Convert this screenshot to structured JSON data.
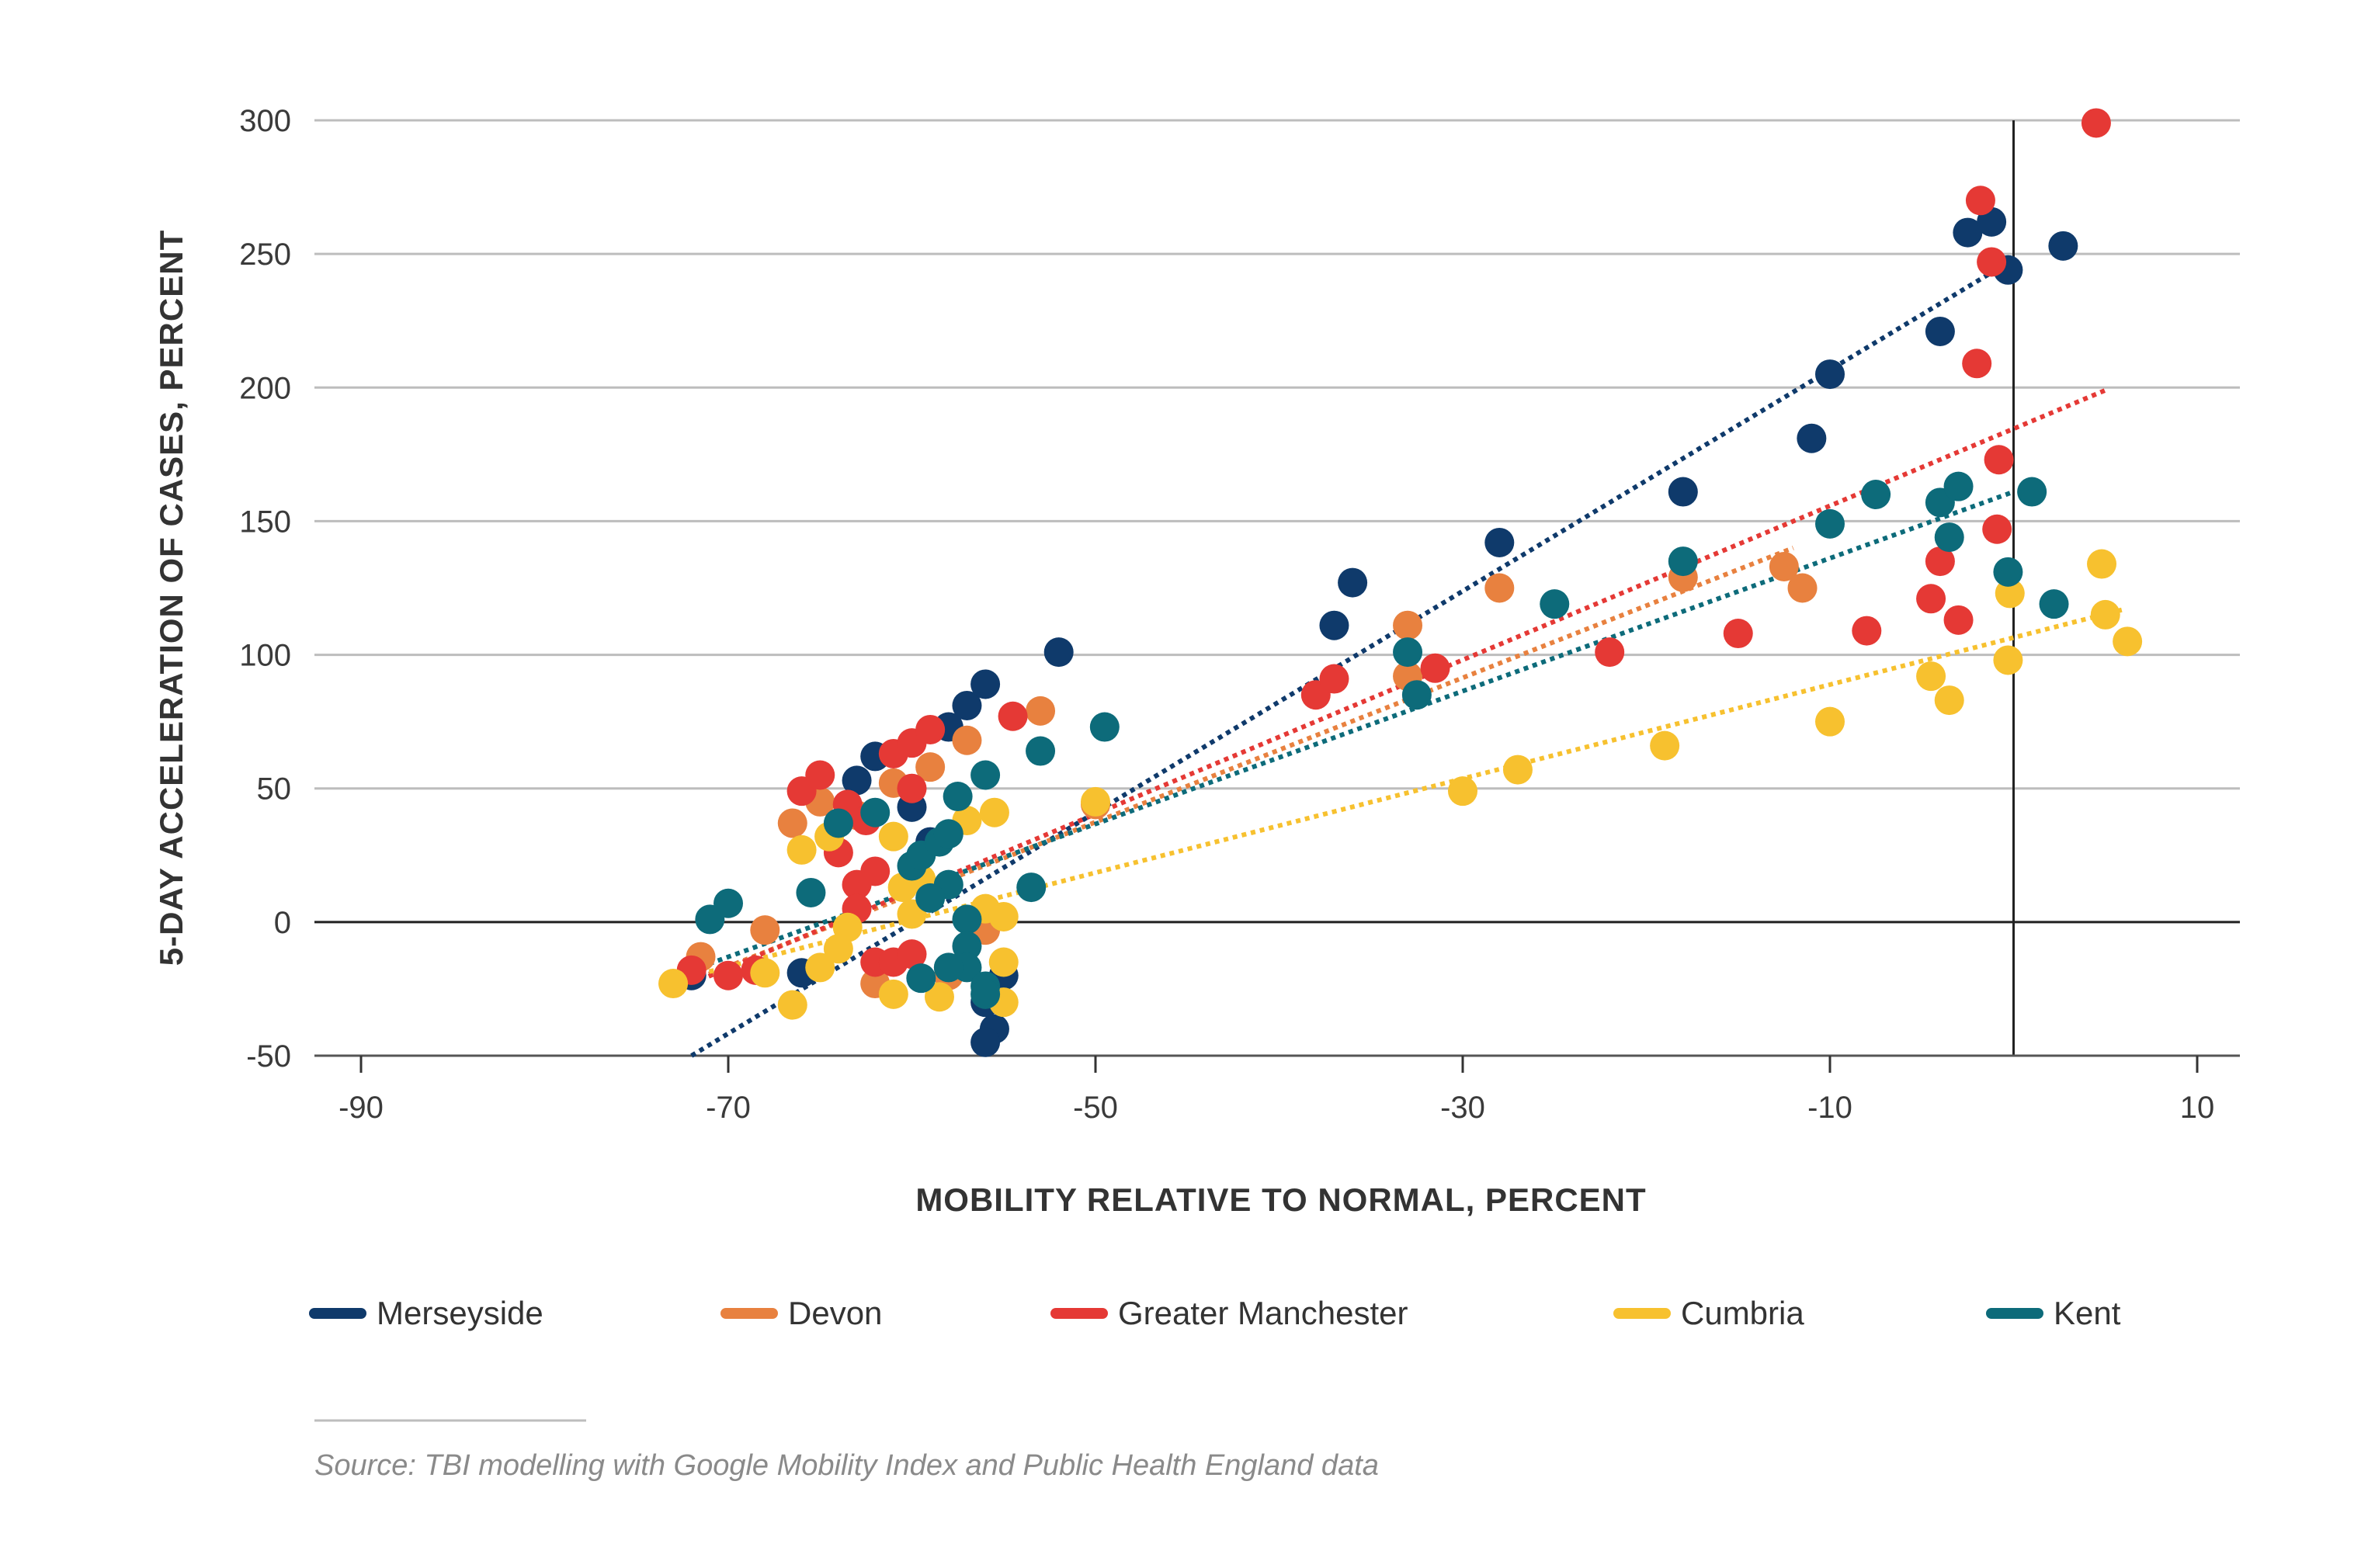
{
  "chart_data": {
    "type": "scatter",
    "xlabel": "MOBILITY RELATIVE TO NORMAL, PERCENT",
    "ylabel": "5-DAY ACCELERATION OF CASES, PERCENT",
    "xlim": [
      -90,
      10
    ],
    "ylim": [
      -50,
      300
    ],
    "xticks": [
      "-90",
      "-70",
      "-50",
      "-30",
      "-10",
      "10"
    ],
    "yticks": [
      "-50",
      "0",
      "50",
      "100",
      "150",
      "200",
      "250",
      "300"
    ],
    "xtick_values": [
      -90,
      -70,
      -50,
      -30,
      -10,
      10
    ],
    "ytick_values": [
      -50,
      0,
      50,
      100,
      150,
      200,
      250,
      300
    ],
    "grid": "horizontal",
    "reference_lines": {
      "x": 0,
      "y": 0
    },
    "legend_position": "bottom",
    "source": "Source: TBI modelling with Google Mobility Index and Public Health England data",
    "series": [
      {
        "name": "Merseyside",
        "color": "#0f3a6b",
        "points": [
          [
            -72,
            -20
          ],
          [
            -66,
            -19
          ],
          [
            -62,
            62
          ],
          [
            -63,
            53
          ],
          [
            -60,
            43
          ],
          [
            -59,
            30
          ],
          [
            -58,
            73
          ],
          [
            -57,
            81
          ],
          [
            -56,
            89
          ],
          [
            -52,
            101
          ],
          [
            -56,
            -30
          ],
          [
            -55.5,
            -40
          ],
          [
            -56,
            -45
          ],
          [
            -55,
            -20
          ],
          [
            -37,
            111
          ],
          [
            -36,
            127
          ],
          [
            -28,
            142
          ],
          [
            -18,
            161
          ],
          [
            -11,
            181
          ],
          [
            -10,
            205
          ],
          [
            -4,
            221
          ],
          [
            -2.5,
            258
          ],
          [
            -1.2,
            262
          ],
          [
            -0.3,
            244
          ],
          [
            2.7,
            253
          ]
        ],
        "trend": [
          [
            -72,
            -50
          ],
          [
            0,
            248
          ]
        ]
      },
      {
        "name": "Devon",
        "color": "#e8813f",
        "points": [
          [
            -71.5,
            -13
          ],
          [
            -68,
            -3
          ],
          [
            -66.5,
            37
          ],
          [
            -65,
            45
          ],
          [
            -63,
            40
          ],
          [
            -61,
            52
          ],
          [
            -59,
            58
          ],
          [
            -57,
            68
          ],
          [
            -53,
            79
          ],
          [
            -50,
            44
          ],
          [
            -56,
            -3
          ],
          [
            -58,
            -20
          ],
          [
            -62,
            -23
          ],
          [
            -33,
            111
          ],
          [
            -33,
            92
          ],
          [
            -28,
            125
          ],
          [
            -18,
            129
          ],
          [
            -12.5,
            133
          ],
          [
            -11.5,
            125
          ]
        ],
        "trend": [
          [
            -72,
            -22
          ],
          [
            -12,
            140
          ]
        ]
      },
      {
        "name": "Greater Manchester",
        "color": "#e53935",
        "points": [
          [
            -72,
            -18
          ],
          [
            -70,
            -20
          ],
          [
            -68.5,
            -18
          ],
          [
            -66,
            49
          ],
          [
            -65,
            55
          ],
          [
            -64,
            26
          ],
          [
            -63.5,
            44
          ],
          [
            -62.5,
            38
          ],
          [
            -62,
            19
          ],
          [
            -63,
            14
          ],
          [
            -61,
            63
          ],
          [
            -60,
            67
          ],
          [
            -59,
            72
          ],
          [
            -60,
            50
          ],
          [
            -63,
            5
          ],
          [
            -62,
            -15
          ],
          [
            -61,
            -15
          ],
          [
            -60,
            -12
          ],
          [
            -54.5,
            77
          ],
          [
            -38,
            85
          ],
          [
            -37,
            91
          ],
          [
            -31.5,
            95
          ],
          [
            -22,
            101
          ],
          [
            -15,
            108
          ],
          [
            -8,
            109
          ],
          [
            -4.5,
            121
          ],
          [
            -4,
            135
          ],
          [
            -3,
            113
          ],
          [
            -2,
            209
          ],
          [
            -1.8,
            270
          ],
          [
            -1.2,
            247
          ],
          [
            -0.8,
            173
          ],
          [
            -0.9,
            147
          ],
          [
            4.5,
            299
          ]
        ],
        "trend": [
          [
            -72,
            -23
          ],
          [
            5,
            199
          ]
        ]
      },
      {
        "name": "Cumbria",
        "color": "#f7c12f",
        "points": [
          [
            -73,
            -23
          ],
          [
            -68,
            -19
          ],
          [
            -66.5,
            -31
          ],
          [
            -66,
            27
          ],
          [
            -64.5,
            32
          ],
          [
            -65,
            -17
          ],
          [
            -63.5,
            -2
          ],
          [
            -64,
            -10
          ],
          [
            -61,
            32
          ],
          [
            -61,
            -27
          ],
          [
            -60.5,
            13
          ],
          [
            -59.5,
            16
          ],
          [
            -60,
            3
          ],
          [
            -58.5,
            -28
          ],
          [
            -57,
            38
          ],
          [
            -55.5,
            41
          ],
          [
            -56,
            5
          ],
          [
            -55,
            2
          ],
          [
            -55,
            -15
          ],
          [
            -55,
            -30
          ],
          [
            -50,
            45
          ],
          [
            -30,
            49
          ],
          [
            -27,
            57
          ],
          [
            -19,
            66
          ],
          [
            -10,
            75
          ],
          [
            -4.5,
            92
          ],
          [
            -3.5,
            83
          ],
          [
            -0.3,
            98
          ],
          [
            -0.2,
            123
          ],
          [
            4.8,
            134
          ],
          [
            5,
            115
          ],
          [
            6.2,
            105
          ]
        ],
        "trend": [
          [
            -73,
            -22
          ],
          [
            6,
            117
          ]
        ]
      },
      {
        "name": "Kent",
        "color": "#0d6b7a",
        "points": [
          [
            -71,
            1
          ],
          [
            -70,
            7
          ],
          [
            -65.5,
            11
          ],
          [
            -64,
            37
          ],
          [
            -62,
            41
          ],
          [
            -60,
            21
          ],
          [
            -59.5,
            25
          ],
          [
            -58.5,
            30
          ],
          [
            -58,
            33
          ],
          [
            -58,
            14
          ],
          [
            -59,
            9
          ],
          [
            -57.5,
            47
          ],
          [
            -56,
            55
          ],
          [
            -57,
            1
          ],
          [
            -57,
            -9
          ],
          [
            -57,
            -17
          ],
          [
            -58,
            -17
          ],
          [
            -59.5,
            -21
          ],
          [
            -56,
            -24
          ],
          [
            -56,
            -27
          ],
          [
            -53.5,
            13
          ],
          [
            -53,
            64
          ],
          [
            -49.5,
            73
          ],
          [
            -33,
            101
          ],
          [
            -32.5,
            85
          ],
          [
            -25,
            119
          ],
          [
            -18,
            135
          ],
          [
            -10,
            149
          ],
          [
            -7.5,
            160
          ],
          [
            -4,
            157
          ],
          [
            -3.5,
            144
          ],
          [
            -3,
            163
          ],
          [
            -0.3,
            131
          ],
          [
            1,
            161
          ],
          [
            2.2,
            119
          ]
        ],
        "trend": [
          [
            -72,
            -18
          ],
          [
            0,
            161
          ]
        ]
      }
    ]
  }
}
